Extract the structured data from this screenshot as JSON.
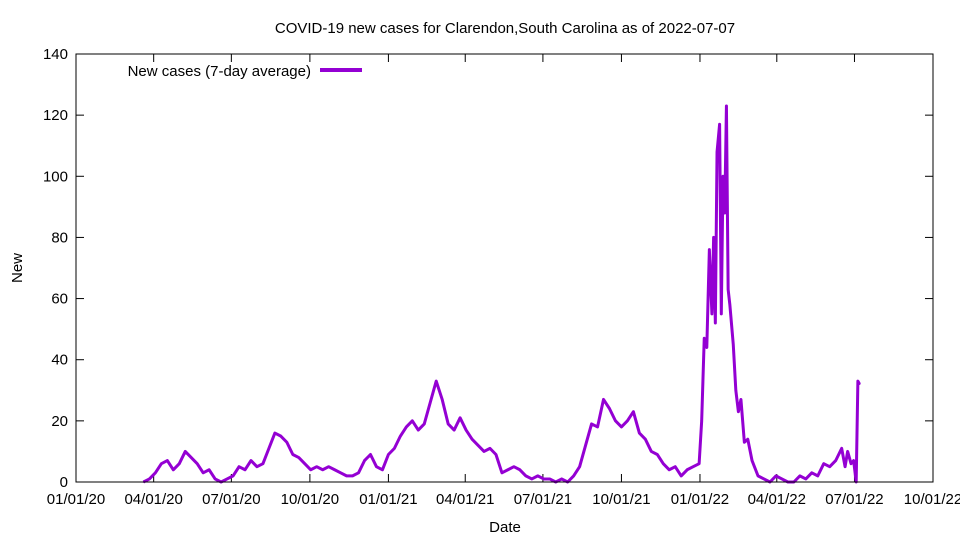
{
  "chart_data": {
    "type": "line",
    "title": "COVID-19 new cases for Clarendon,South Carolina as of 2022-07-07",
    "xlabel": "Date",
    "ylabel": "New",
    "xlim": [
      "2020-01-01",
      "2022-10-01"
    ],
    "ylim": [
      0,
      140
    ],
    "x_ticks": [
      "01/01/20",
      "04/01/20",
      "07/01/20",
      "10/01/20",
      "01/01/21",
      "04/01/21",
      "07/01/21",
      "10/01/21",
      "01/01/22",
      "04/01/22",
      "07/01/22",
      "10/01/22"
    ],
    "y_ticks": [
      0,
      20,
      40,
      60,
      80,
      100,
      120,
      140
    ],
    "grid": false,
    "legend_position": "top-left",
    "colors": {
      "series": "#9400d3",
      "axis": "#000000",
      "background": "#ffffff"
    },
    "series": [
      {
        "name": "New cases (7-day average)",
        "points": [
          [
            "2020-03-20",
            0
          ],
          [
            "2020-03-27",
            1
          ],
          [
            "2020-04-03",
            3
          ],
          [
            "2020-04-10",
            6
          ],
          [
            "2020-04-17",
            7
          ],
          [
            "2020-04-24",
            4
          ],
          [
            "2020-05-01",
            6
          ],
          [
            "2020-05-08",
            10
          ],
          [
            "2020-05-15",
            8
          ],
          [
            "2020-05-22",
            6
          ],
          [
            "2020-05-29",
            3
          ],
          [
            "2020-06-05",
            4
          ],
          [
            "2020-06-12",
            1
          ],
          [
            "2020-06-19",
            0
          ],
          [
            "2020-06-26",
            1
          ],
          [
            "2020-07-03",
            2
          ],
          [
            "2020-07-10",
            5
          ],
          [
            "2020-07-17",
            4
          ],
          [
            "2020-07-24",
            7
          ],
          [
            "2020-07-31",
            5
          ],
          [
            "2020-08-07",
            6
          ],
          [
            "2020-08-14",
            11
          ],
          [
            "2020-08-21",
            16
          ],
          [
            "2020-08-28",
            15
          ],
          [
            "2020-09-04",
            13
          ],
          [
            "2020-09-11",
            9
          ],
          [
            "2020-09-18",
            8
          ],
          [
            "2020-09-25",
            6
          ],
          [
            "2020-10-02",
            4
          ],
          [
            "2020-10-09",
            5
          ],
          [
            "2020-10-16",
            4
          ],
          [
            "2020-10-23",
            5
          ],
          [
            "2020-10-30",
            4
          ],
          [
            "2020-11-06",
            3
          ],
          [
            "2020-11-13",
            2
          ],
          [
            "2020-11-20",
            2
          ],
          [
            "2020-11-27",
            3
          ],
          [
            "2020-12-04",
            7
          ],
          [
            "2020-12-11",
            9
          ],
          [
            "2020-12-18",
            5
          ],
          [
            "2020-12-25",
            4
          ],
          [
            "2021-01-01",
            9
          ],
          [
            "2021-01-08",
            11
          ],
          [
            "2021-01-15",
            15
          ],
          [
            "2021-01-22",
            18
          ],
          [
            "2021-01-29",
            20
          ],
          [
            "2021-02-05",
            17
          ],
          [
            "2021-02-12",
            19
          ],
          [
            "2021-02-19",
            26
          ],
          [
            "2021-02-26",
            33
          ],
          [
            "2021-03-05",
            27
          ],
          [
            "2021-03-12",
            19
          ],
          [
            "2021-03-19",
            17
          ],
          [
            "2021-03-26",
            21
          ],
          [
            "2021-04-02",
            17
          ],
          [
            "2021-04-09",
            14
          ],
          [
            "2021-04-16",
            12
          ],
          [
            "2021-04-23",
            10
          ],
          [
            "2021-04-30",
            11
          ],
          [
            "2021-05-07",
            9
          ],
          [
            "2021-05-14",
            3
          ],
          [
            "2021-05-21",
            4
          ],
          [
            "2021-05-28",
            5
          ],
          [
            "2021-06-04",
            4
          ],
          [
            "2021-06-11",
            2
          ],
          [
            "2021-06-18",
            1
          ],
          [
            "2021-06-25",
            2
          ],
          [
            "2021-07-02",
            1
          ],
          [
            "2021-07-09",
            1
          ],
          [
            "2021-07-16",
            0
          ],
          [
            "2021-07-23",
            1
          ],
          [
            "2021-07-30",
            0
          ],
          [
            "2021-08-06",
            2
          ],
          [
            "2021-08-13",
            5
          ],
          [
            "2021-08-20",
            12
          ],
          [
            "2021-08-27",
            19
          ],
          [
            "2021-09-03",
            18
          ],
          [
            "2021-09-10",
            27
          ],
          [
            "2021-09-17",
            24
          ],
          [
            "2021-09-24",
            20
          ],
          [
            "2021-10-01",
            18
          ],
          [
            "2021-10-08",
            20
          ],
          [
            "2021-10-15",
            23
          ],
          [
            "2021-10-22",
            16
          ],
          [
            "2021-10-29",
            14
          ],
          [
            "2021-11-05",
            10
          ],
          [
            "2021-11-12",
            9
          ],
          [
            "2021-11-19",
            6
          ],
          [
            "2021-11-26",
            4
          ],
          [
            "2021-12-03",
            5
          ],
          [
            "2021-12-10",
            2
          ],
          [
            "2021-12-17",
            4
          ],
          [
            "2021-12-24",
            5
          ],
          [
            "2021-12-31",
            6
          ],
          [
            "2022-01-03",
            20
          ],
          [
            "2022-01-06",
            47
          ],
          [
            "2022-01-09",
            44
          ],
          [
            "2022-01-12",
            76
          ],
          [
            "2022-01-15",
            55
          ],
          [
            "2022-01-17",
            80
          ],
          [
            "2022-01-19",
            52
          ],
          [
            "2022-01-21",
            108
          ],
          [
            "2022-01-24",
            117
          ],
          [
            "2022-01-26",
            55
          ],
          [
            "2022-01-28",
            100
          ],
          [
            "2022-01-30",
            88
          ],
          [
            "2022-02-01",
            123
          ],
          [
            "2022-02-03",
            63
          ],
          [
            "2022-02-05",
            58
          ],
          [
            "2022-02-09",
            45
          ],
          [
            "2022-02-12",
            30
          ],
          [
            "2022-02-15",
            23
          ],
          [
            "2022-02-18",
            27
          ],
          [
            "2022-02-22",
            13
          ],
          [
            "2022-02-26",
            14
          ],
          [
            "2022-03-03",
            7
          ],
          [
            "2022-03-10",
            2
          ],
          [
            "2022-03-17",
            1
          ],
          [
            "2022-03-24",
            0
          ],
          [
            "2022-03-31",
            2
          ],
          [
            "2022-04-07",
            1
          ],
          [
            "2022-04-14",
            0
          ],
          [
            "2022-04-21",
            0
          ],
          [
            "2022-04-28",
            2
          ],
          [
            "2022-05-05",
            1
          ],
          [
            "2022-05-12",
            3
          ],
          [
            "2022-05-19",
            2
          ],
          [
            "2022-05-26",
            6
          ],
          [
            "2022-06-02",
            5
          ],
          [
            "2022-06-09",
            7
          ],
          [
            "2022-06-16",
            11
          ],
          [
            "2022-06-20",
            5
          ],
          [
            "2022-06-23",
            10
          ],
          [
            "2022-06-27",
            6
          ],
          [
            "2022-06-30",
            7
          ],
          [
            "2022-07-03",
            0
          ],
          [
            "2022-07-05",
            33
          ],
          [
            "2022-07-07",
            32
          ]
        ]
      }
    ]
  }
}
